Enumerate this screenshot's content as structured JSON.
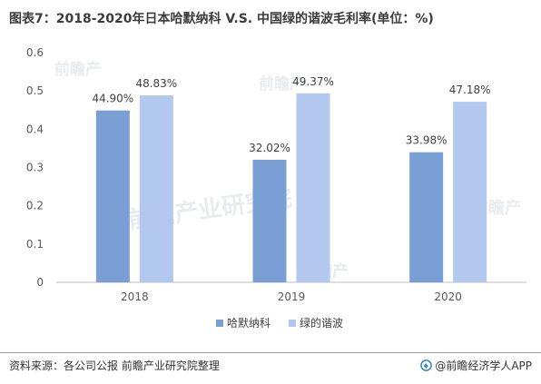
{
  "title": "图表7：2018-2020年日本哈默纳科 V.S. 中国绿的谐波毛利率(单位：%)",
  "chart_data": {
    "type": "bar",
    "categories": [
      "2018",
      "2019",
      "2020"
    ],
    "series": [
      {
        "name": "哈默纳科",
        "values": [
          0.449,
          0.3202,
          0.3398
        ],
        "labels": [
          "44.90%",
          "32.02%",
          "33.98%"
        ],
        "color": "#7a9fd4"
      },
      {
        "name": "绿的谐波",
        "values": [
          0.4883,
          0.4937,
          0.4718
        ],
        "labels": [
          "48.83%",
          "49.37%",
          "47.18%"
        ],
        "color": "#b2c8ee"
      }
    ],
    "ylim": [
      0,
      0.6
    ],
    "yticks": [
      "0",
      "0.1",
      "0.2",
      "0.3",
      "0.4",
      "0.5",
      "0.6"
    ],
    "grid": false,
    "legend": "bottom-center"
  },
  "watermark": {
    "text_cn": "前瞻产业研究院",
    "text_short": "前瞻产"
  },
  "footer": {
    "source": "资料来源：各公司公报 前瞻产业研究院整理",
    "brand": "@前瞻经济学人APP",
    "brand_icon": "qianzhan-logo-icon",
    "brand_color": "#2f86c8"
  }
}
